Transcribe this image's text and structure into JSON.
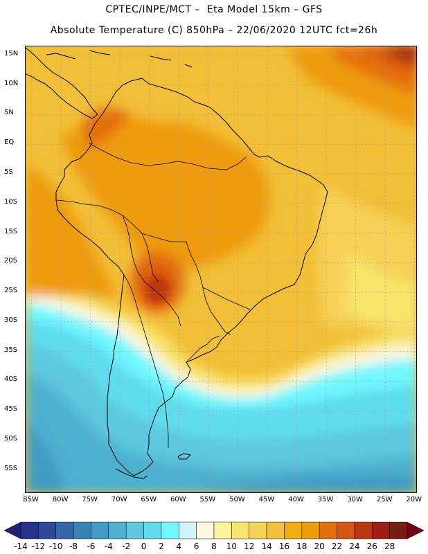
{
  "header": {
    "line1": "CPTEC/INPE/MCT –  Eta Model 15km – GFS",
    "line2": "Absolute Temperature (C) 850hPa – 22/06/2020 12UTC fct=26h"
  },
  "map": {
    "region": "South America",
    "latitude_labels": [
      "15N",
      "10N",
      "5N",
      "EQ",
      "5S",
      "10S",
      "15S",
      "20S",
      "25S",
      "30S",
      "35S",
      "40S",
      "45S",
      "50S",
      "55S"
    ],
    "longitude_labels": [
      "85W",
      "80W",
      "75W",
      "70W",
      "65W",
      "60W",
      "55W",
      "50W",
      "45W",
      "40W",
      "35W",
      "30W",
      "25W",
      "20W"
    ],
    "lat_values": [
      15,
      10,
      5,
      0,
      -5,
      -10,
      -15,
      -20,
      -25,
      -30,
      -35,
      -40,
      -45,
      -50,
      -55
    ],
    "lon_values": [
      -85,
      -80,
      -75,
      -70,
      -65,
      -60,
      -55,
      -50,
      -45,
      -40,
      -35,
      -30,
      -25,
      -20
    ],
    "extent": {
      "lon_min": -86,
      "lon_max": -19.5,
      "lat_min": -59,
      "lat_max": 16.5
    }
  },
  "colorbar": {
    "unit": "C",
    "labels": [
      "-14",
      "-12",
      "-10",
      "-8",
      "-6",
      "-4",
      "-2",
      "0",
      "2",
      "4",
      "6",
      "8",
      "10",
      "12",
      "14",
      "16",
      "18",
      "20",
      "22",
      "24",
      "26",
      "28"
    ],
    "colors": [
      "#26328c",
      "#2d4b9a",
      "#3268aa",
      "#3982b8",
      "#419bc4",
      "#4db1d0",
      "#5cc8dd",
      "#5edcec",
      "#6ff7ff",
      "#d1f4fb",
      "#fdf6e1",
      "#fbf69b",
      "#f7e46d",
      "#f6d157",
      "#f2bf37",
      "#f0ad11",
      "#ee9b0c",
      "#e56f0d",
      "#d75510",
      "#bd3511",
      "#9a1e11",
      "#7c1a14"
    ],
    "low_arrow_color": "#1d2277",
    "high_arrow_color": "#760014"
  }
}
